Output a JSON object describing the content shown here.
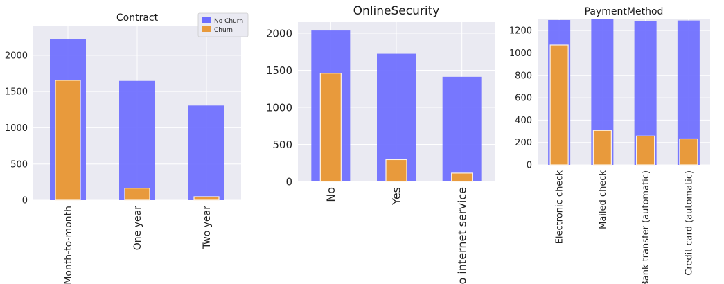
{
  "colors": {
    "no_churn": "#6d6dff",
    "churn": "#e89a3c",
    "panel_bg": "#eaeaf2",
    "grid": "#ffffff"
  },
  "chart_data": [
    {
      "type": "bar",
      "title": "Contract",
      "categories": [
        "Month-to-month",
        "One year",
        "Two year"
      ],
      "series": [
        {
          "name": "No Churn",
          "values": [
            2220,
            1647,
            1307
          ]
        },
        {
          "name": "Churn",
          "values": [
            1655,
            166,
            48
          ]
        }
      ],
      "ylim": [
        0,
        2400
      ],
      "yticks": [
        0,
        500,
        1000,
        1500,
        2000
      ],
      "legend": {
        "position": "top-right",
        "items": [
          "No Churn",
          "Churn"
        ]
      },
      "grid": true
    },
    {
      "type": "bar",
      "title": "OnlineSecurity",
      "categories": [
        "No",
        "Yes",
        "No internet service"
      ],
      "series": [
        {
          "name": "No Churn",
          "values": [
            2037,
            1724,
            1413
          ]
        },
        {
          "name": "Churn",
          "values": [
            1461,
            295,
            113
          ]
        }
      ],
      "ylim": [
        0,
        2150
      ],
      "yticks": [
        0,
        500,
        1000,
        1500,
        2000
      ],
      "grid": true
    },
    {
      "type": "bar",
      "title": "PaymentMethod",
      "categories": [
        "Electronic check",
        "Mailed check",
        "Bank transfer (automatic)",
        "Credit card (automatic)"
      ],
      "series": [
        {
          "name": "No Churn",
          "values": [
            1294,
            1304,
            1286,
            1290
          ]
        },
        {
          "name": "Churn",
          "values": [
            1071,
            308,
            258,
            232
          ]
        }
      ],
      "ylim": [
        0,
        1300
      ],
      "yticks": [
        0,
        200,
        400,
        600,
        800,
        1000,
        1200
      ],
      "grid": true
    }
  ]
}
